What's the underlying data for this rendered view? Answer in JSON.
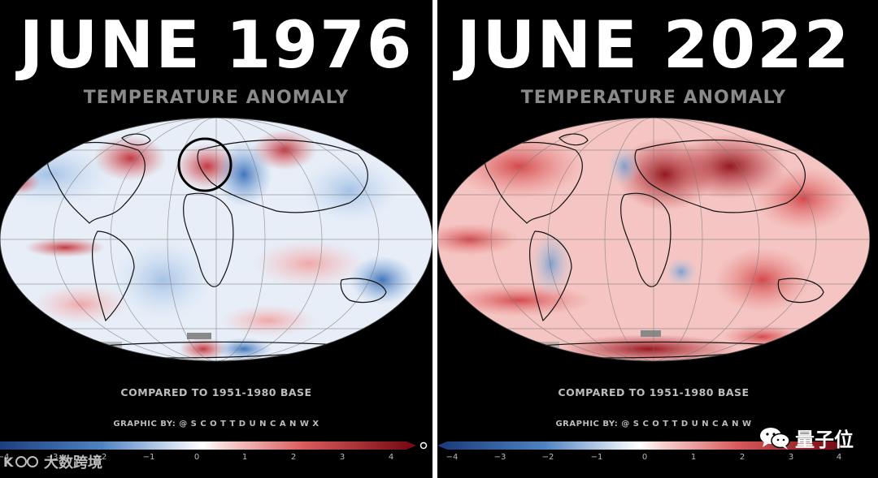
{
  "panels": [
    {
      "title": "JUNE 1976",
      "subtitle": "TEMPERATURE ANOMALY",
      "caption": "COMPARED TO 1951-1980 BASE",
      "credit": "GRAPHIC BY: @ S C O T T D U N C A N W X"
    },
    {
      "title": "JUNE 2022",
      "subtitle": "TEMPERATURE ANOMALY",
      "caption": "COMPARED TO 1951-1980 BASE",
      "credit": "GRAPHIC BY: @ S C O T T D U N C A N W"
    }
  ],
  "colorbar": {
    "ticks": [
      "−4",
      "−3",
      "−2",
      "−1",
      "0",
      "1",
      "2",
      "3",
      "4"
    ],
    "colors": {
      "cold": "#2a5caa",
      "neutral": "#ffffff",
      "warm": "#b2182b"
    }
  },
  "watermarks": {
    "left_text": "大数跨境",
    "left_icon": "logo-icon",
    "right_text": "量子位",
    "right_icon": "wechat-icon"
  }
}
